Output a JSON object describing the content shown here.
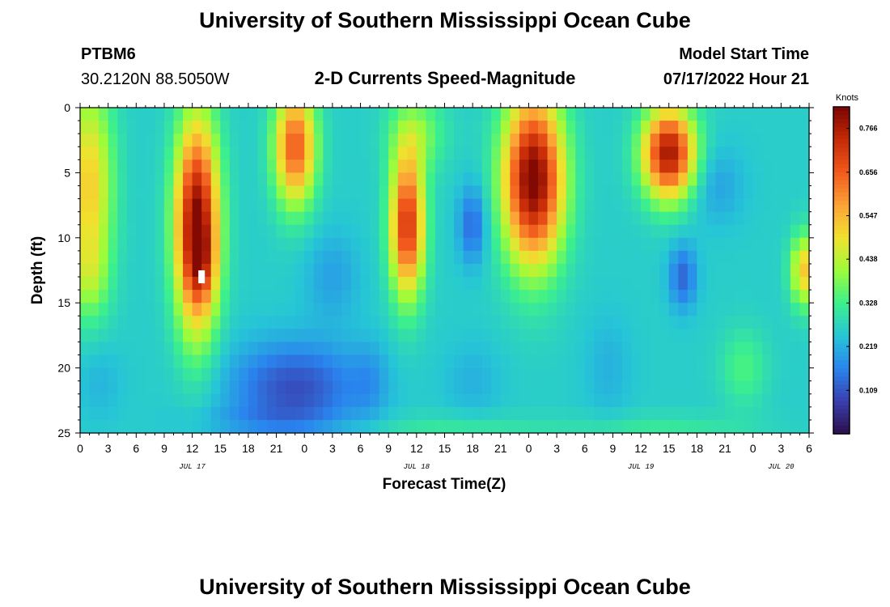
{
  "header": {
    "title": "University of Southern Mississippi Ocean Cube",
    "station": "PTBM6",
    "coords": "30.2120N  88.5050W",
    "chart_title": "2-D Currents Speed-Magnitude",
    "model_label": "Model Start Time",
    "model_time": "07/17/2022 Hour 21"
  },
  "footer": {
    "title": "University of Southern Mississippi Ocean Cube"
  },
  "colors": {
    "scale": [
      "#2b0f4a",
      "#3a3fb0",
      "#2a84ee",
      "#26c6d6",
      "#3cf08c",
      "#9dfc3a",
      "#f1e12e",
      "#fca236",
      "#f1591c",
      "#c52a06",
      "#7a0403"
    ]
  },
  "chart_data": {
    "type": "heatmap",
    "title": "2-D Currents Speed-Magnitude",
    "xlabel": "Forecast Time(Z)",
    "ylabel": "Depth (ft)",
    "x_ticks": [
      "0",
      "3",
      "6",
      "9",
      "12",
      "15",
      "18",
      "21",
      "0",
      "3",
      "6",
      "9",
      "12",
      "15",
      "18",
      "21",
      "0",
      "3",
      "6",
      "9",
      "12",
      "15",
      "18",
      "21",
      "0",
      "3",
      "6"
    ],
    "x_range_hours": [
      0,
      78
    ],
    "date_labels": [
      {
        "label": "JUL 17",
        "hour": 12
      },
      {
        "label": "JUL 18",
        "hour": 36
      },
      {
        "label": "JUL 19",
        "hour": 60
      },
      {
        "label": "JUL 20",
        "hour": 75
      }
    ],
    "y_ticks": [
      0,
      5,
      10,
      15,
      20,
      25
    ],
    "ylim": [
      0,
      25
    ],
    "colorbar": {
      "unit": "Knots",
      "range": [
        0,
        0.82
      ],
      "labels": [
        "0.766",
        "0.656",
        "0.547",
        "0.438",
        "0.328",
        "0.219",
        "0.109"
      ],
      "label_values": [
        0.766,
        0.656,
        0.547,
        0.438,
        0.328,
        0.219,
        0.109
      ]
    },
    "grid": false,
    "features": [
      {
        "h": 1,
        "d": 6,
        "sh": 2.5,
        "sd": 8,
        "a": 0.26
      },
      {
        "h": 1,
        "d": 13,
        "sh": 2,
        "sd": 3,
        "a": 0.08
      },
      {
        "h": 12.5,
        "d": 9,
        "sh": 2.3,
        "sd": 8,
        "a": 0.56
      },
      {
        "h": 13,
        "d": 12,
        "sh": 1.5,
        "sd": 3,
        "a": 0.1
      },
      {
        "h": 23,
        "d": 3,
        "sh": 2.2,
        "sd": 4.5,
        "a": 0.4
      },
      {
        "h": 35,
        "d": 9,
        "sh": 1.8,
        "sd": 5.5,
        "a": 0.46
      },
      {
        "h": 36,
        "d": 2,
        "sh": 3,
        "sd": 3,
        "a": 0.12
      },
      {
        "h": 48.5,
        "d": 5.5,
        "sh": 3.2,
        "sd": 6.5,
        "a": 0.57
      },
      {
        "h": 63,
        "d": 3.5,
        "sh": 2.8,
        "sd": 3.5,
        "a": 0.52
      },
      {
        "h": 77.5,
        "d": 12.5,
        "sh": 1.5,
        "sd": 2.8,
        "a": 0.26
      },
      {
        "h": 23,
        "d": 21.5,
        "sh": 7,
        "sd": 3.5,
        "a": -0.16
      },
      {
        "h": 27,
        "d": 13,
        "sh": 3,
        "sd": 3.5,
        "a": -0.06
      },
      {
        "h": 31,
        "d": 21,
        "sh": 2,
        "sd": 3,
        "a": -0.05
      },
      {
        "h": 2,
        "d": 21,
        "sh": 2.5,
        "sd": 3,
        "a": -0.04
      },
      {
        "h": 19,
        "d": 24,
        "sh": 8,
        "sd": 1.2,
        "a": -0.04
      },
      {
        "h": 42,
        "d": 9,
        "sh": 1.5,
        "sd": 3,
        "a": -0.13
      },
      {
        "h": 42,
        "d": 21,
        "sh": 3,
        "sd": 3,
        "a": -0.04
      },
      {
        "h": 64.5,
        "d": 13,
        "sh": 1.5,
        "sd": 2.5,
        "a": -0.13
      },
      {
        "h": 68,
        "d": 6,
        "sh": 3,
        "sd": 3,
        "a": -0.06
      },
      {
        "h": 71,
        "d": 20,
        "sh": 2.5,
        "sd": 3,
        "a": 0.08
      },
      {
        "h": 56.5,
        "d": 20,
        "sh": 2.5,
        "sd": 4,
        "a": -0.04
      },
      {
        "h": 40,
        "d": 24.5,
        "sh": 10,
        "sd": 1,
        "a": 0.05
      },
      {
        "h": 62,
        "d": 24.5,
        "sh": 10,
        "sd": 1,
        "a": 0.05
      }
    ],
    "base_speed": 0.26,
    "marker": {
      "label": "max-speed",
      "hour": 13,
      "depth": 13
    }
  }
}
